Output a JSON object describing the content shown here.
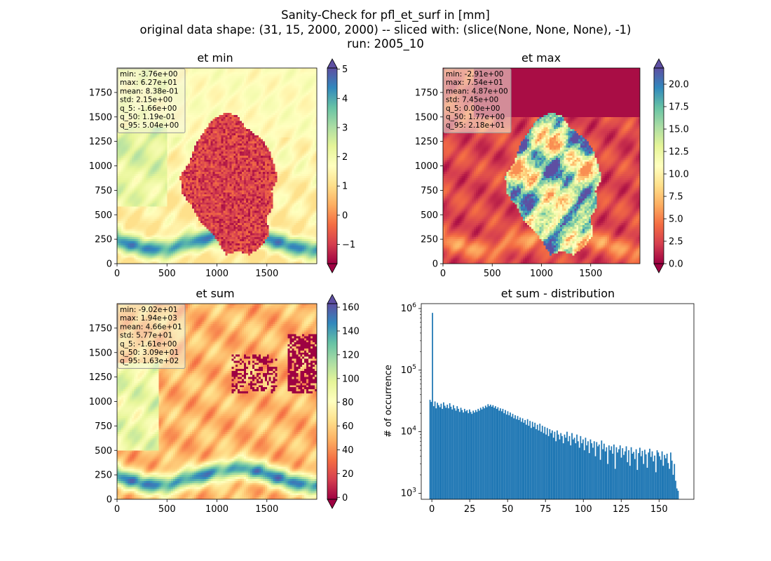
{
  "figure": {
    "suptitle_lines": [
      "Sanity-Check for pfl_et_surf in [mm]",
      "original data shape: (31, 15, 2000, 2000) -- sliced with: (slice(None, None, None), -1)",
      "run: 2005_10"
    ]
  },
  "colors": {
    "spectral_stops": [
      "#9e0142",
      "#d53e4f",
      "#f46d43",
      "#fdae61",
      "#fee08b",
      "#ffffbf",
      "#e6f598",
      "#abdda4",
      "#66c2a5",
      "#3288bd",
      "#5e4fa2"
    ],
    "hist_bar": "#1f77b4",
    "stats_box_bg": "#f5f5dc"
  },
  "panels": [
    {
      "id": "et-min",
      "title": "et min",
      "image_x_ticks": [
        "0",
        "500",
        "1000",
        "1500"
      ],
      "image_y_ticks": [
        "0",
        "250",
        "500",
        "750",
        "1000",
        "1250",
        "1500",
        "1750"
      ],
      "stats_lines": [
        "min: -3.76e+00",
        "max: 6.27e+01",
        "mean: 8.38e-01",
        "std: 2.15e+00",
        "q_5: -1.66e+00",
        "q_50: 1.19e-01",
        "q_95: 5.04e+00"
      ],
      "colorbar_range": [
        -1.66,
        5.04
      ],
      "colorbar_ticks": [
        "−1",
        "0",
        "1",
        "2",
        "3",
        "4",
        "5"
      ],
      "colorbar_tick_values": [
        -1,
        0,
        1,
        2,
        3,
        4,
        5
      ]
    },
    {
      "id": "et-max",
      "title": "et max",
      "image_x_ticks": [
        "0",
        "500",
        "1000",
        "1500"
      ],
      "image_y_ticks": [
        "0",
        "250",
        "500",
        "750",
        "1000",
        "1250",
        "1500",
        "1750"
      ],
      "stats_lines": [
        "min: -2.91e+00",
        "max: 7.54e+01",
        "mean: 4.87e+00",
        "std: 7.45e+00",
        "q_5: 0.00e+00",
        "q_50: 1.77e+00",
        "q_95: 2.18e+01"
      ],
      "colorbar_range": [
        0.0,
        21.8
      ],
      "colorbar_ticks": [
        "0.0",
        "2.5",
        "5.0",
        "7.5",
        "10.0",
        "12.5",
        "15.0",
        "17.5",
        "20.0"
      ],
      "colorbar_tick_values": [
        0,
        2.5,
        5,
        7.5,
        10,
        12.5,
        15,
        17.5,
        20
      ]
    },
    {
      "id": "et-sum",
      "title": "et sum",
      "image_x_ticks": [
        "0",
        "500",
        "1000",
        "1500"
      ],
      "image_y_ticks": [
        "0",
        "250",
        "500",
        "750",
        "1000",
        "1250",
        "1500",
        "1750"
      ],
      "stats_lines": [
        "min: -9.02e+01",
        "max: 1.94e+03",
        "mean: 4.66e+01",
        "std: 5.77e+01",
        "q_5: -1.61e+00",
        "q_50: 3.09e+01",
        "q_95: 1.63e+02"
      ],
      "colorbar_range": [
        -1.61,
        163
      ],
      "colorbar_ticks": [
        "0",
        "20",
        "40",
        "60",
        "80",
        "100",
        "120",
        "140",
        "160"
      ],
      "colorbar_tick_values": [
        0,
        20,
        40,
        60,
        80,
        100,
        120,
        140,
        160
      ]
    }
  ],
  "chart_data": {
    "type": "bar",
    "title": "et sum - distribution",
    "ylabel": "# of occurrence",
    "xlabel": "",
    "yscale": "log",
    "xlim": [
      -7,
      173
    ],
    "ylim": [
      800,
      1200000
    ],
    "x_ticks": [
      0,
      25,
      50,
      75,
      100,
      125,
      150
    ],
    "x_tick_labels": [
      "0",
      "25",
      "50",
      "75",
      "100",
      "125",
      "150"
    ],
    "y_ticks": [
      1000,
      10000,
      100000,
      1000000
    ],
    "y_tick_labels": [
      [
        "10",
        "3"
      ],
      [
        "10",
        "4"
      ],
      [
        "10",
        "5"
      ],
      [
        "10",
        "6"
      ]
    ],
    "bin_range": [
      -1.61,
      163
    ],
    "bin_count": 200,
    "counts": [
      33000,
      30500,
      850000,
      26000,
      31000,
      24000,
      29500,
      27000,
      25000,
      28500,
      23500,
      30000,
      26500,
      24500,
      27500,
      24000,
      29000,
      25500,
      23000,
      27000,
      24000,
      22000,
      26000,
      23500,
      21000,
      24500,
      22500,
      20500,
      23500,
      21500,
      22500,
      20000,
      23000,
      21000,
      19500,
      22000,
      20500,
      22500,
      21000,
      23500,
      22000,
      24500,
      23000,
      25500,
      24000,
      26500,
      25000,
      28000,
      26000,
      27500,
      25500,
      27000,
      24500,
      26000,
      23500,
      25000,
      22000,
      24000,
      21500,
      23500,
      20000,
      22500,
      19000,
      21500,
      18500,
      20500,
      17500,
      19500,
      16500,
      18500,
      16000,
      18000,
      15500,
      17000,
      14500,
      16500,
      14000,
      15500,
      13000,
      16000,
      12500,
      15000,
      11500,
      14500,
      12000,
      14000,
      11000,
      13000,
      10500,
      13500,
      10000,
      12500,
      9500,
      12000,
      9000,
      11500,
      8500,
      11000,
      9500,
      10500,
      8000,
      10000,
      7000,
      10500,
      9000,
      7500,
      9500,
      8500,
      6500,
      9000,
      8000,
      10000,
      7000,
      8500,
      6000,
      9500,
      7500,
      8000,
      6500,
      9000,
      7000,
      5500,
      8500,
      6500,
      7500,
      5000,
      8000,
      6000,
      7000,
      4500,
      7500,
      6500,
      5500,
      7000,
      4000,
      6800,
      5800,
      6200,
      3500,
      7200,
      5200,
      6400,
      4800,
      5600,
      3000,
      6000,
      5000,
      5800,
      4400,
      6200,
      2500,
      5600,
      4600,
      5200,
      6000,
      3800,
      5400,
      4200,
      4800,
      5800,
      3200,
      5000,
      2800,
      5600,
      4400,
      4700,
      3600,
      5200,
      2400,
      4500,
      5500,
      4000,
      4900,
      3000,
      5100,
      4300,
      2600,
      4600,
      5300,
      3900,
      4800,
      3300,
      4100,
      2200,
      5000,
      4600,
      4000,
      3500,
      4800,
      2800,
      4200,
      3700,
      4400,
      3100,
      2500,
      4600,
      3400,
      2000,
      3000,
      1600,
      1200,
      1100
    ]
  }
}
